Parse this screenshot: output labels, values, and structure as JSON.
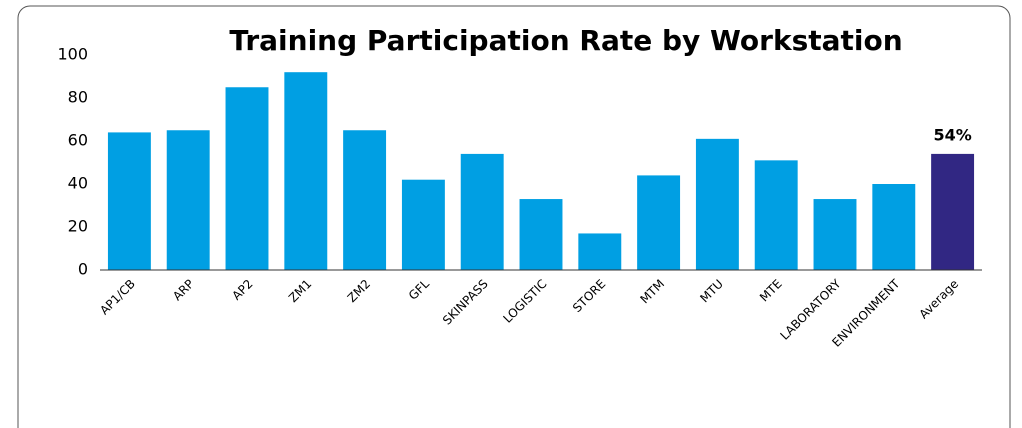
{
  "chart_data": {
    "type": "bar",
    "title": "Training Participation Rate by Workstation",
    "categories": [
      "AP1/CB",
      "ARP",
      "AP2",
      "ZM1",
      "ZM2",
      "GFL",
      "SKINPASS",
      "LOGISTIC",
      "STORE",
      "MTM",
      "MTU",
      "MTE",
      "LABORATORY",
      "ENVIRONMENT",
      "Average"
    ],
    "values": [
      64,
      65,
      85,
      92,
      65,
      42,
      54,
      33,
      17,
      44,
      61,
      51,
      33,
      40,
      54
    ],
    "value_labels": [
      null,
      null,
      null,
      null,
      null,
      null,
      null,
      null,
      null,
      null,
      null,
      null,
      null,
      null,
      "54%"
    ],
    "colors": [
      "#009fe3",
      "#009fe3",
      "#009fe3",
      "#009fe3",
      "#009fe3",
      "#009fe3",
      "#009fe3",
      "#009fe3",
      "#009fe3",
      "#009fe3",
      "#009fe3",
      "#009fe3",
      "#009fe3",
      "#009fe3",
      "#312783"
    ],
    "ylim": [
      0,
      100
    ],
    "yticks": [
      0,
      20,
      40,
      60,
      80,
      100
    ],
    "grid": false
  }
}
